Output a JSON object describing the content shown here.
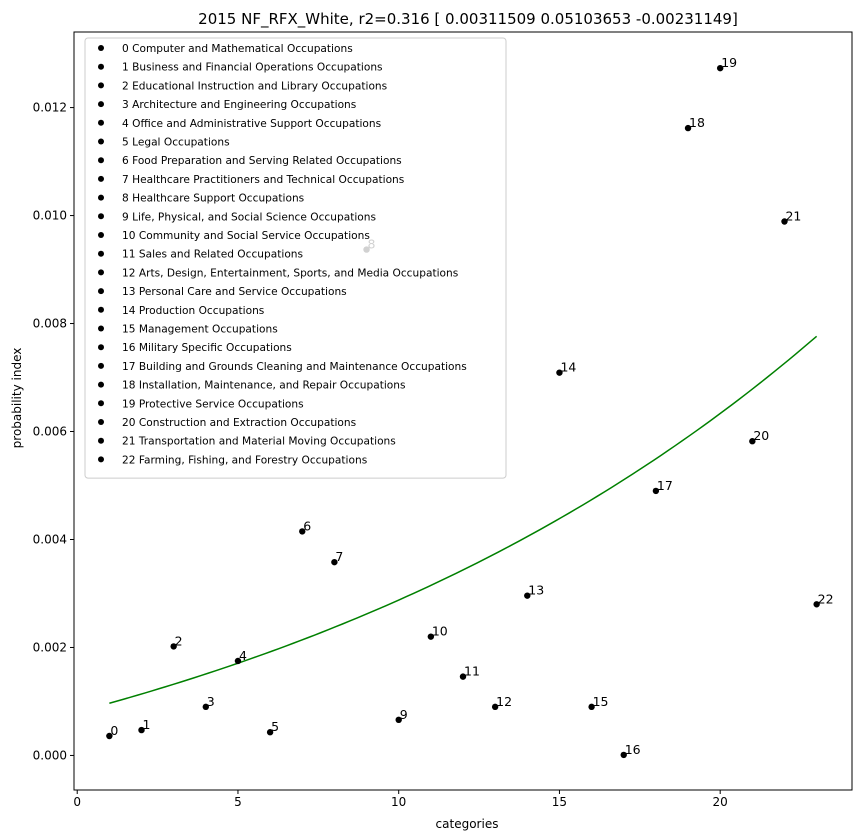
{
  "chart_data": {
    "type": "scatter",
    "title": "2015 NF_RFX_White, r2=0.316  [ 0.00311509  0.05103653 -0.00231149]",
    "xlabel": "categories",
    "ylabel": "probability index",
    "xlim": [
      -0.1,
      24.1
    ],
    "ylim": [
      -0.00064,
      0.0134
    ],
    "xticks": [
      0,
      5,
      10,
      15,
      20
    ],
    "yticks": [
      0.0,
      0.002,
      0.004,
      0.006,
      0.008,
      0.01,
      0.012
    ],
    "ytick_labels": [
      "0.000",
      "0.002",
      "0.004",
      "0.006",
      "0.008",
      "0.010",
      "0.012"
    ],
    "grid": false,
    "legend_position": "top-left",
    "marker_color": "#000000",
    "fit_color": "#008000",
    "points": [
      {
        "label": "0",
        "x": 1,
        "y": 0.00036,
        "legend": "0 Computer and Mathematical Occupations"
      },
      {
        "label": "1",
        "x": 2,
        "y": 0.00047,
        "legend": "1 Business and Financial Operations Occupations"
      },
      {
        "label": "2",
        "x": 3,
        "y": 0.00202,
        "legend": "2 Educational Instruction and Library Occupations"
      },
      {
        "label": "3",
        "x": 4,
        "y": 0.0009,
        "legend": "3 Architecture and Engineering Occupations"
      },
      {
        "label": "4",
        "x": 5,
        "y": 0.00175,
        "legend": "4 Office and Administrative Support Occupations"
      },
      {
        "label": "5",
        "x": 6,
        "y": 0.00043,
        "legend": "5 Legal Occupations"
      },
      {
        "label": "6",
        "x": 7,
        "y": 0.00415,
        "legend": "6 Food Preparation and Serving Related Occupations"
      },
      {
        "label": "7",
        "x": 8,
        "y": 0.00358,
        "legend": "7 Healthcare Practitioners and Technical Occupations"
      },
      {
        "label": "8",
        "x": 9,
        "y": 0.00937,
        "legend": "8 Healthcare Support Occupations"
      },
      {
        "label": "9",
        "x": 10,
        "y": 0.00066,
        "legend": "9 Life, Physical, and Social Science Occupations"
      },
      {
        "label": "10",
        "x": 11,
        "y": 0.0022,
        "legend": "10 Community and Social Service Occupations"
      },
      {
        "label": "11",
        "x": 12,
        "y": 0.00146,
        "legend": "11 Sales and Related Occupations"
      },
      {
        "label": "12",
        "x": 13,
        "y": 0.0009,
        "legend": "12 Arts, Design, Entertainment, Sports, and Media Occupations"
      },
      {
        "label": "13",
        "x": 14,
        "y": 0.00296,
        "legend": "13 Personal Care and Service Occupations"
      },
      {
        "label": "14",
        "x": 15,
        "y": 0.00709,
        "legend": "14 Production Occupations"
      },
      {
        "label": "15",
        "x": 16,
        "y": 0.0009,
        "legend": "15 Management Occupations"
      },
      {
        "label": "16",
        "x": 17,
        "y": 1e-05,
        "legend": "16 Military Specific Occupations"
      },
      {
        "label": "17",
        "x": 18,
        "y": 0.0049,
        "legend": "17 Building and Grounds Cleaning and Maintenance Occupations"
      },
      {
        "label": "18",
        "x": 19,
        "y": 0.01162,
        "legend": "18 Installation, Maintenance, and Repair Occupations"
      },
      {
        "label": "19",
        "x": 20,
        "y": 0.01273,
        "legend": "19 Protective Service Occupations"
      },
      {
        "label": "20",
        "x": 21,
        "y": 0.00582,
        "legend": "20 Construction and Extraction Occupations"
      },
      {
        "label": "21",
        "x": 22,
        "y": 0.00989,
        "legend": "21 Transportation and Material Moving Occupations"
      },
      {
        "label": "22",
        "x": 23,
        "y": 0.0028,
        "legend": "22 Farming, Fishing, and Forestry Occupations"
      }
    ],
    "fit_params": [
      0.00311509,
      0.05103653,
      -0.00231149
    ],
    "fit_x_range": [
      1,
      23
    ]
  }
}
